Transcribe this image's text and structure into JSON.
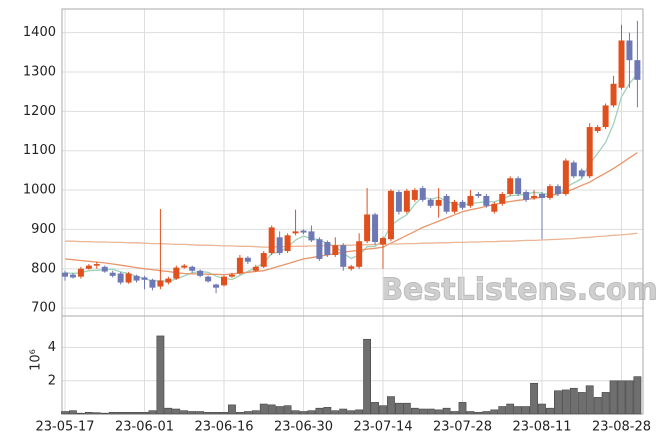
{
  "chart_data": {
    "type": "candlestick",
    "watermark": "BestListens.com",
    "volume_axis_label": "10⁶",
    "categories": [
      "23-05-17",
      null,
      null,
      null,
      null,
      null,
      null,
      null,
      null,
      null,
      "23-06-01",
      null,
      null,
      null,
      null,
      null,
      null,
      null,
      null,
      null,
      "23-06-16",
      null,
      null,
      null,
      null,
      null,
      null,
      null,
      null,
      null,
      "23-06-30",
      null,
      null,
      null,
      null,
      null,
      null,
      null,
      null,
      null,
      "23-07-14",
      null,
      null,
      null,
      null,
      null,
      null,
      null,
      null,
      null,
      "23-07-28",
      null,
      null,
      null,
      null,
      null,
      null,
      null,
      null,
      null,
      "23-08-11",
      null,
      null,
      null,
      null,
      null,
      null,
      null,
      null,
      null,
      "23-08-28",
      null,
      null
    ],
    "open": [
      790,
      785,
      780,
      800,
      808,
      805,
      790,
      788,
      765,
      782,
      778,
      772,
      755,
      765,
      775,
      803,
      805,
      795,
      780,
      760,
      758,
      780,
      788,
      828,
      795,
      805,
      840,
      880,
      845,
      890,
      897,
      895,
      875,
      868,
      835,
      860,
      800,
      805,
      870,
      938,
      862,
      875,
      995,
      945,
      975,
      1005,
      975,
      960,
      985,
      945,
      970,
      960,
      990,
      985,
      945,
      965,
      990,
      1030,
      995,
      980,
      990,
      980,
      1010,
      990,
      1070,
      1050,
      1035,
      1150,
      1160,
      1215,
      1260,
      1380,
      1330
    ],
    "high": [
      795,
      790,
      805,
      812,
      818,
      808,
      795,
      792,
      792,
      785,
      782,
      775,
      952,
      780,
      808,
      812,
      808,
      798,
      783,
      762,
      783,
      790,
      835,
      832,
      810,
      845,
      910,
      895,
      890,
      950,
      900,
      910,
      880,
      872,
      880,
      865,
      810,
      890,
      1005,
      942,
      882,
      1002,
      1000,
      1003,
      1005,
      1010,
      980,
      1005,
      990,
      975,
      975,
      1000,
      995,
      990,
      970,
      995,
      1035,
      1035,
      1000,
      1000,
      995,
      1015,
      1015,
      1080,
      1075,
      1055,
      1170,
      1165,
      1220,
      1290,
      1420,
      1400,
      1430
    ],
    "low": [
      770,
      775,
      775,
      798,
      800,
      790,
      778,
      760,
      762,
      765,
      748,
      745,
      748,
      760,
      772,
      800,
      790,
      778,
      765,
      738,
      755,
      777,
      785,
      812,
      792,
      802,
      835,
      835,
      840,
      885,
      888,
      868,
      820,
      830,
      830,
      795,
      795,
      800,
      865,
      860,
      800,
      870,
      938,
      940,
      970,
      970,
      955,
      930,
      940,
      940,
      950,
      955,
      980,
      955,
      940,
      960,
      985,
      985,
      970,
      975,
      875,
      975,
      985,
      985,
      1030,
      1030,
      1030,
      1145,
      1155,
      1210,
      1255,
      1260,
      1210
    ],
    "close": [
      780,
      778,
      800,
      808,
      812,
      793,
      782,
      765,
      788,
      770,
      772,
      752,
      770,
      775,
      803,
      808,
      795,
      782,
      768,
      752,
      780,
      785,
      828,
      818,
      805,
      840,
      905,
      840,
      885,
      895,
      892,
      872,
      825,
      835,
      860,
      805,
      806,
      870,
      938,
      868,
      878,
      998,
      945,
      998,
      1000,
      975,
      960,
      975,
      945,
      970,
      955,
      985,
      985,
      960,
      965,
      990,
      1030,
      990,
      975,
      985,
      980,
      1010,
      990,
      1075,
      1035,
      1035,
      1160,
      1160,
      1215,
      1270,
      1380,
      1330,
      1280
    ],
    "volume": [
      0.15,
      0.2,
      0.05,
      0.1,
      0.08,
      0.05,
      0.1,
      0.1,
      0.1,
      0.1,
      0.1,
      0.2,
      4.7,
      0.35,
      0.3,
      0.2,
      0.15,
      0.15,
      0.1,
      0.1,
      0.1,
      0.55,
      0.1,
      0.15,
      0.2,
      0.6,
      0.55,
      0.45,
      0.5,
      0.2,
      0.15,
      0.2,
      0.35,
      0.4,
      0.2,
      0.3,
      0.2,
      0.25,
      4.5,
      0.7,
      0.5,
      1.05,
      0.65,
      0.65,
      0.35,
      0.3,
      0.3,
      0.25,
      0.35,
      0.15,
      0.7,
      0.15,
      0.1,
      0.15,
      0.25,
      0.45,
      0.6,
      0.45,
      0.45,
      1.85,
      0.6,
      0.35,
      1.4,
      1.45,
      1.55,
      1.3,
      1.7,
      1.0,
      1.3,
      2.0,
      2.0,
      2.0,
      2.25
    ],
    "up_color": "#e0501e",
    "down_color": "#6e78b4",
    "volume_color": "#6f6f6f",
    "moving_averages": [
      {
        "color": "#9fd3b8",
        "values": [
          790,
          788,
          790,
          795,
          796,
          798,
          799,
          792,
          788,
          780,
          775,
          769,
          770,
          768,
          774,
          782,
          790,
          793,
          791,
          781,
          775,
          773,
          783,
          793,
          803,
          815,
          839,
          842,
          855,
          873,
          883,
          877,
          874,
          864,
          857,
          839,
          826,
          835,
          856,
          857,
          872,
          910,
          925,
          937,
          964,
          983,
          976,
          982,
          971,
          965,
          961,
          966,
          968,
          971,
          970,
          977,
          986,
          987,
          990,
          994,
          992,
          988,
          988,
          1008,
          1018,
          1029,
          1067,
          1093,
          1121,
          1168,
          1237,
          1271,
          1295
        ]
      },
      {
        "color": "#e8956a",
        "values": [
          825,
          823,
          821,
          819,
          817,
          815,
          812,
          809,
          806,
          803,
          800,
          798,
          795,
          793,
          790,
          788,
          787,
          787,
          786,
          786,
          785,
          787,
          789,
          791,
          793,
          795,
          801,
          807,
          813,
          819,
          825,
          828,
          832,
          835,
          839,
          842,
          845,
          847,
          850,
          852,
          855,
          865,
          875,
          885,
          895,
          905,
          913,
          921,
          929,
          937,
          945,
          950,
          954,
          959,
          963,
          968,
          971,
          974,
          976,
          979,
          982,
          986,
          991,
          995,
          1003,
          1012,
          1020,
          1032,
          1043,
          1055,
          1068,
          1082,
          1095
        ]
      },
      {
        "color": "#ebb596",
        "values": [
          870,
          870,
          869,
          869,
          868,
          868,
          867,
          867,
          866,
          866,
          865,
          864,
          864,
          863,
          862,
          862,
          861,
          860,
          860,
          859,
          858,
          858,
          857,
          857,
          856,
          855,
          855,
          856,
          856,
          857,
          857,
          858,
          858,
          859,
          859,
          860,
          860,
          861,
          861,
          862,
          862,
          863,
          863,
          864,
          864,
          865,
          865,
          866,
          866,
          867,
          867,
          868,
          868,
          869,
          869,
          870,
          870,
          871,
          872,
          872,
          873,
          874,
          875,
          876,
          877,
          879,
          880,
          882,
          883,
          885,
          886,
          888,
          890
        ]
      }
    ],
    "ylim": [
      680,
      1460
    ],
    "yticks": [
      700,
      800,
      900,
      1000,
      1100,
      1200,
      1300,
      1400
    ],
    "y2lim": [
      0,
      5.9
    ],
    "y2ticks": [
      2,
      4
    ],
    "grid": true
  }
}
